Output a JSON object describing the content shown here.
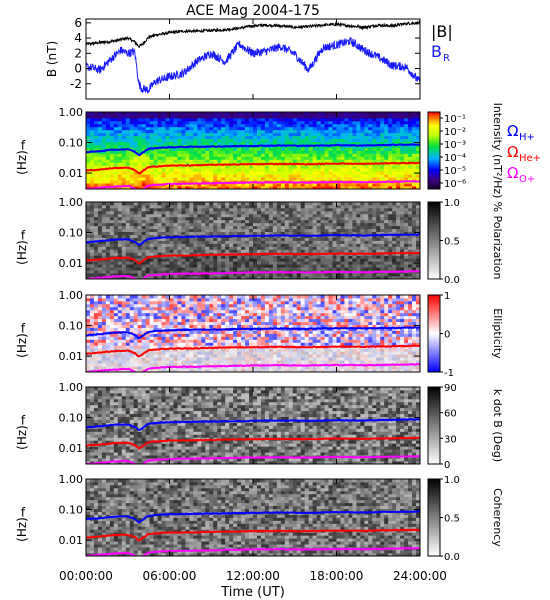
{
  "title": "ACE Mag 2004-175",
  "xlabel": "Time (UT)",
  "time_ticks": [
    "00:00:00",
    "06:00:00",
    "12:00:00",
    "18:00:00",
    "24:00:00"
  ],
  "colors": {
    "B_total": "#000000",
    "B_R": "#1a1aff",
    "H_plus": "#0000ff",
    "He_plus": "#ff0000",
    "O_plus": "#ff00ff"
  },
  "chart_data": [
    {
      "type": "line",
      "panel": "magnetic-field",
      "ylabel": "B (nT)",
      "ylim": [
        -4,
        6.5
      ],
      "yticks": [
        "6",
        "4",
        "2",
        "0",
        "-2"
      ],
      "x_hours": [
        0,
        1,
        2,
        2.5,
        3,
        3.5,
        3.8,
        4,
        4.5,
        5,
        6,
        7,
        8,
        9,
        10,
        11,
        12,
        13,
        14,
        15,
        16,
        17,
        18,
        19,
        20,
        21,
        22,
        23,
        24
      ],
      "series": [
        {
          "name": "|B|",
          "values": [
            3.2,
            3.4,
            3.6,
            3.8,
            4.0,
            3.5,
            2.9,
            3.1,
            4.1,
            4.4,
            4.7,
            4.9,
            4.9,
            5.0,
            5.1,
            5.3,
            5.6,
            5.7,
            5.6,
            5.4,
            5.5,
            5.7,
            5.8,
            5.6,
            5.4,
            5.7,
            5.6,
            5.9,
            6.0
          ]
        },
        {
          "name": "B_R",
          "values": [
            0.3,
            -0.2,
            1.6,
            2.4,
            2.0,
            2.2,
            -2.0,
            -2.6,
            -2.8,
            -1.7,
            -1.1,
            -0.6,
            1.0,
            2.0,
            0.9,
            3.2,
            2.0,
            2.3,
            2.9,
            1.9,
            -0.2,
            2.7,
            3.1,
            3.6,
            2.4,
            1.5,
            0.4,
            0.2,
            -1.8
          ]
        }
      ]
    },
    {
      "type": "heatmap",
      "panel": "power-spectral-density",
      "ylabel": "f (Hz)",
      "yscale": "log",
      "ylim": [
        0.003,
        1.0
      ],
      "yticks": [
        "1.00",
        "0.10",
        "0.01"
      ],
      "colorbar": {
        "label": "Intensity (nT²/Hz)",
        "ticks": [
          "10⁻¹",
          "10⁻²",
          "10⁻³",
          "10⁻⁴",
          "10⁻⁵",
          "10⁻⁶"
        ],
        "colormap": "rainbow"
      },
      "legend": [
        "Ω_H+",
        "Ω_He+",
        "Ω_O+"
      ]
    },
    {
      "type": "heatmap",
      "panel": "percent-polarization",
      "ylabel": "f (Hz)",
      "yscale": "log",
      "ylim": [
        0.003,
        1.0
      ],
      "yticks": [
        "1.00",
        "0.10",
        "0.01"
      ],
      "colorbar": {
        "label": "% Polarization",
        "ticks": [
          "1.0",
          "0.5",
          "0.0"
        ],
        "colormap": "grayscale"
      }
    },
    {
      "type": "heatmap",
      "panel": "ellipticity",
      "ylabel": "f (Hz)",
      "yscale": "log",
      "ylim": [
        0.003,
        1.0
      ],
      "yticks": [
        "1.00",
        "0.10",
        "0.01"
      ],
      "colorbar": {
        "label": "Ellipticity",
        "ticks": [
          "1",
          "0",
          "-1"
        ],
        "colormap": "blue-white-red"
      }
    },
    {
      "type": "heatmap",
      "panel": "k-dot-b",
      "ylabel": "f (Hz)",
      "yscale": "log",
      "ylim": [
        0.003,
        1.0
      ],
      "yticks": [
        "1.00",
        "0.10",
        "0.01"
      ],
      "colorbar": {
        "label": "k dot B (Deg)",
        "ticks": [
          "90",
          "60",
          "30",
          "0"
        ],
        "colormap": "grayscale"
      }
    },
    {
      "type": "heatmap",
      "panel": "coherency",
      "ylabel": "f (Hz)",
      "yscale": "log",
      "ylim": [
        0.003,
        1.0
      ],
      "yticks": [
        "1.00",
        "0.10",
        "0.01"
      ],
      "colorbar": {
        "label": "Coherency",
        "ticks": [
          "1.0",
          "0.5",
          "0.0"
        ],
        "colormap": "grayscale"
      }
    }
  ],
  "gyrofrequency_curves": {
    "x_hours": [
      0,
      1,
      2,
      3,
      3.5,
      3.8,
      4.0,
      4.5,
      5,
      6,
      8,
      10,
      12,
      14,
      16,
      18,
      20,
      22,
      24
    ],
    "H_plus_hz": [
      0.048,
      0.052,
      0.058,
      0.06,
      0.05,
      0.038,
      0.044,
      0.062,
      0.066,
      0.07,
      0.073,
      0.075,
      0.078,
      0.08,
      0.078,
      0.082,
      0.08,
      0.084,
      0.086
    ],
    "He_plus_hz": [
      0.012,
      0.013,
      0.0145,
      0.015,
      0.0125,
      0.0095,
      0.011,
      0.0155,
      0.0165,
      0.0175,
      0.018,
      0.019,
      0.0195,
      0.02,
      0.0195,
      0.0205,
      0.02,
      0.021,
      0.0215
    ],
    "O_plus_hz": [
      0.003,
      0.0033,
      0.0036,
      0.0038,
      0.0031,
      0.0024,
      0.0028,
      0.0039,
      0.0041,
      0.0044,
      0.0045,
      0.0047,
      0.0049,
      0.005,
      0.0049,
      0.0051,
      0.005,
      0.0052,
      0.0054
    ]
  }
}
